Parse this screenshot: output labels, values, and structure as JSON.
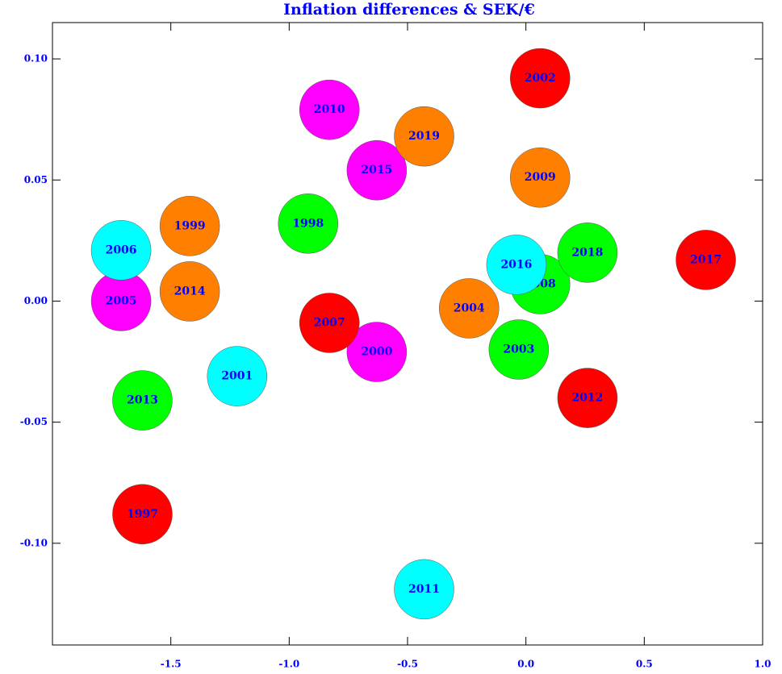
{
  "chart_data": {
    "type": "scatter",
    "title": "Inflation differences & SEK/€",
    "labels": [
      "1997",
      "1998",
      "1999",
      "2000",
      "2001",
      "2002",
      "2003",
      "2004",
      "2005",
      "2006",
      "2007",
      "2008",
      "2009",
      "2010",
      "2011",
      "2012",
      "2013",
      "2014",
      "2015",
      "2016",
      "2017",
      "2018",
      "2019"
    ],
    "x": [
      -1.62,
      -0.92,
      -1.42,
      -0.63,
      -1.22,
      0.06,
      -0.03,
      -0.24,
      -1.71,
      -1.71,
      -0.83,
      0.06,
      0.06,
      -0.83,
      -0.43,
      0.26,
      -1.62,
      -1.42,
      -0.63,
      -0.04,
      0.76,
      0.26,
      -0.43
    ],
    "values": [
      -0.088,
      0.032,
      0.031,
      -0.021,
      -0.031,
      0.092,
      -0.02,
      -0.003,
      0.0,
      0.021,
      -0.009,
      0.007,
      0.051,
      0.079,
      -0.119,
      -0.04,
      -0.041,
      0.004,
      0.054,
      0.015,
      0.017,
      0.02,
      0.068
    ],
    "colors": [
      "#ff0000",
      "#00ff00",
      "#ff8000",
      "#ff00ff",
      "#00ffff",
      "#ff0000",
      "#00ff00",
      "#ff8000",
      "#ff00ff",
      "#00ffff",
      "#ff0000",
      "#00ff00",
      "#ff8000",
      "#ff00ff",
      "#00ffff",
      "#ff0000",
      "#00ff00",
      "#ff8000",
      "#ff00ff",
      "#00ffff",
      "#ff0000",
      "#00ff00",
      "#ff8000"
    ],
    "xlim": [
      -2.0,
      1.0
    ],
    "ylim": [
      -0.142,
      0.115
    ],
    "xticks": [
      -1.5,
      {
        "value": -1.0,
        "label": "-1.0"
      },
      -0.5,
      {
        "value": 0.0,
        "label": "0.0"
      },
      0.5,
      {
        "value": 1.0,
        "label": "1.0"
      }
    ],
    "yticks": [
      {
        "value": 0.1,
        "label": "0.10"
      },
      0.05,
      {
        "value": 0.0,
        "label": "0.00"
      },
      -0.05,
      {
        "value": -0.1,
        "label": "-0.10"
      }
    ]
  }
}
